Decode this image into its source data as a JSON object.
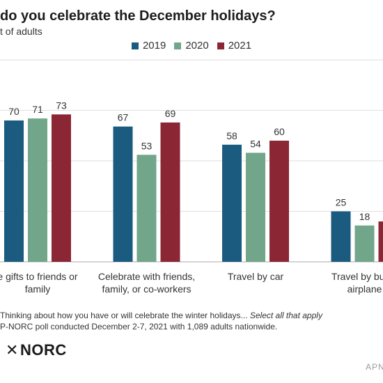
{
  "chart_data": {
    "type": "bar",
    "title": "do you celebrate the December holidays?",
    "subtitle": "t of adults",
    "categories": [
      [
        "e gifts to friends or",
        "family"
      ],
      [
        "Celebrate with friends,",
        "family, or co-workers"
      ],
      [
        "Travel by car"
      ],
      [
        "Travel by bus, t",
        "airplane"
      ]
    ],
    "series": [
      {
        "name": "2019",
        "color": "#1b5b7f",
        "values": [
          70,
          67,
          58,
          25
        ]
      },
      {
        "name": "2020",
        "color": "#72a68a",
        "values": [
          71,
          53,
          54,
          18
        ]
      },
      {
        "name": "2021",
        "color": "#8b2634",
        "values": [
          73,
          69,
          60,
          20
        ]
      }
    ],
    "data_labels": [
      [
        "70",
        "67",
        "58",
        "25"
      ],
      [
        "71",
        "53",
        "54",
        "18"
      ],
      [
        "73",
        "69",
        "60",
        ""
      ]
    ],
    "ylim": [
      0,
      100
    ],
    "gridlines": [
      25,
      50,
      75,
      100
    ],
    "grid": true,
    "legend_position": "top-center"
  },
  "notes": {
    "question_prefix": "Thinking about how you have or will celebrate the winter holidays...",
    "question_instruction": "Select all that apply",
    "source": "P-NORC poll conducted December 2-7, 2021 with 1,089 adults nationwide."
  },
  "logo": {
    "text": "NORC",
    "mark": "✕"
  },
  "credit": "APN"
}
